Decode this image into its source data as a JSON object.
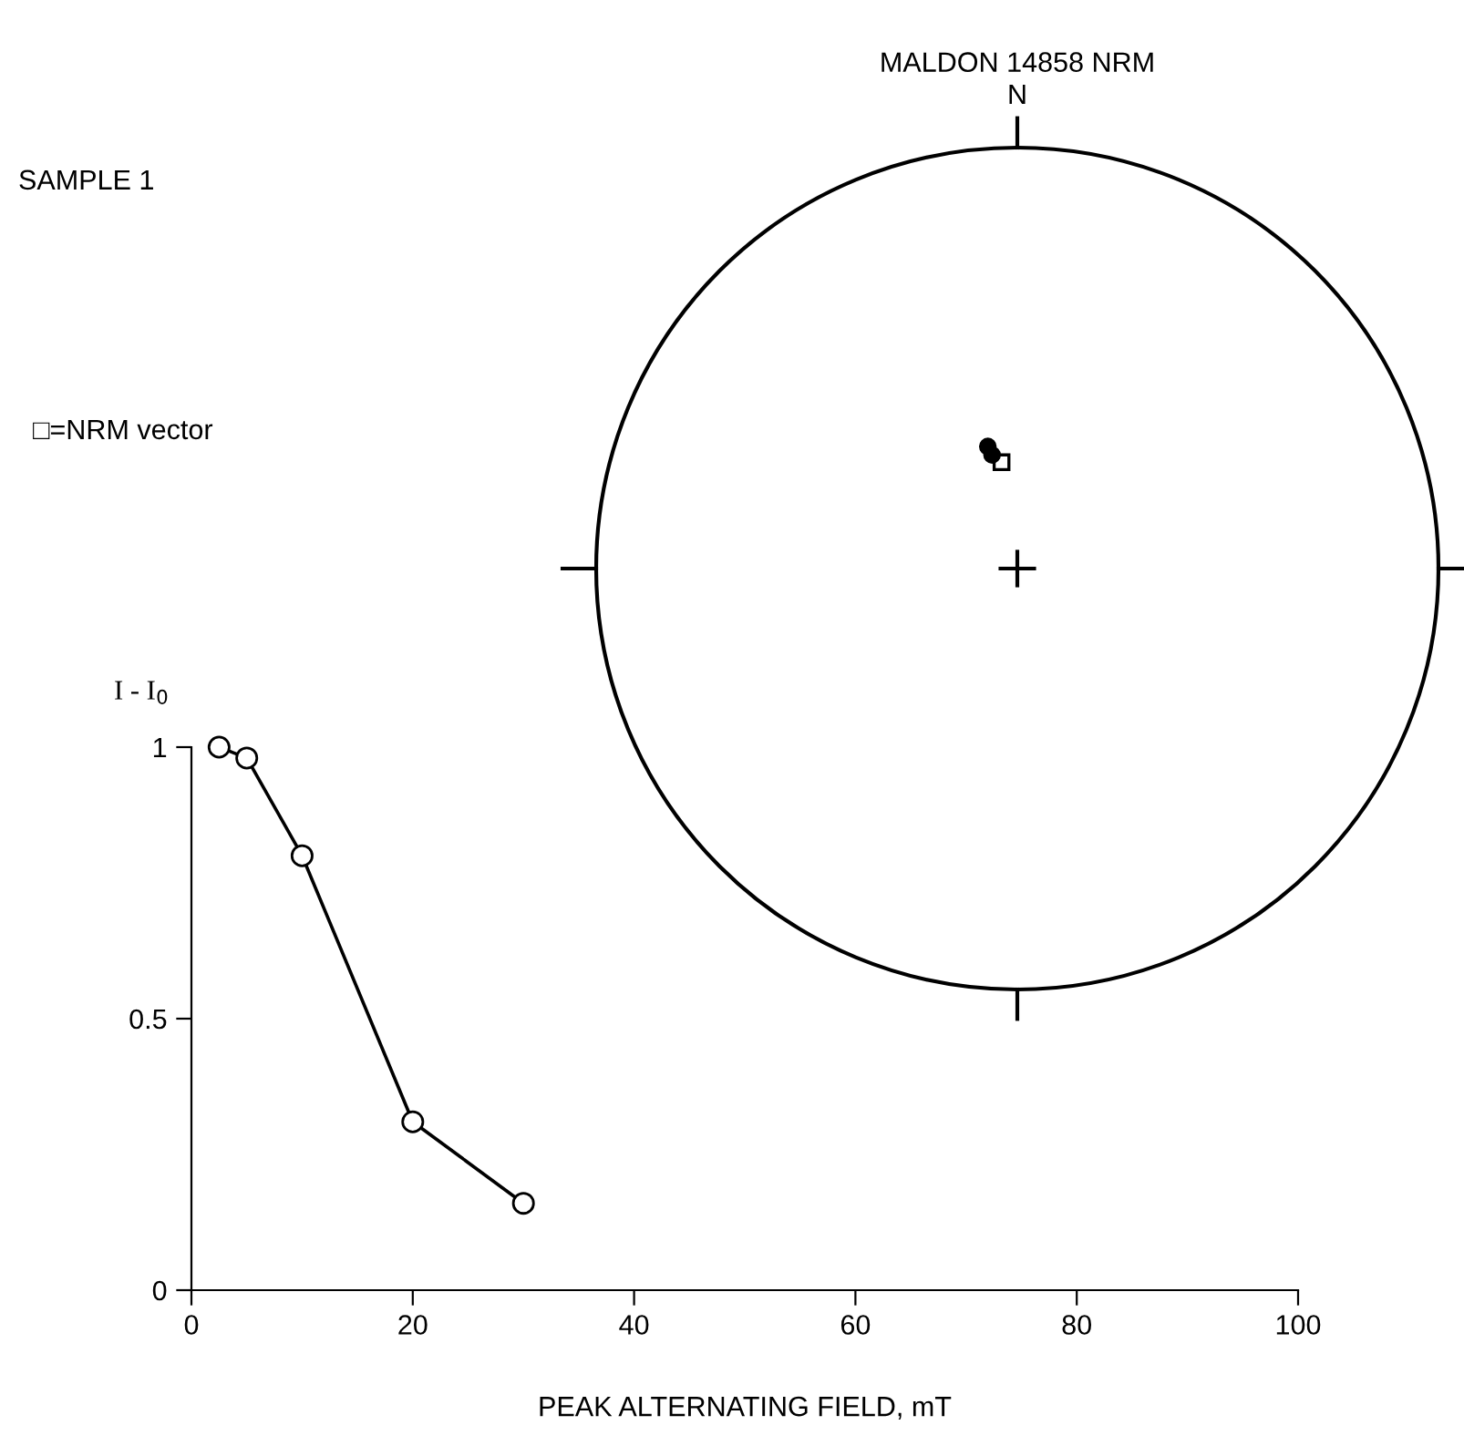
{
  "chart_data": [
    {
      "type": "other",
      "title": "MALDON 14858 NRM",
      "annotations": [
        "N",
        "□=NRM vector"
      ]
    },
    {
      "type": "line",
      "xlabel": "PEAK ALTERNATING FIELD, mT",
      "ylabel": "I - I$_{0}$",
      "annotations": [
        "SAMPLE 1"
      ],
      "x": [
        2.5,
        5,
        10,
        20,
        30
      ],
      "marker": "circle",
      "grid": false,
      "series": [
        {
          "color": "#000000",
          "values": [
            1.0,
            0.98,
            0.8,
            0.31,
            0.16
          ]
        }
      ],
      "xlim": [
        0,
        100
      ],
      "xticks": [
        0,
        20,
        40,
        60,
        80,
        100
      ],
      "ylim": [
        0,
        1
      ],
      "yticks": [
        0,
        0.5,
        1
      ]
    }
  ]
}
